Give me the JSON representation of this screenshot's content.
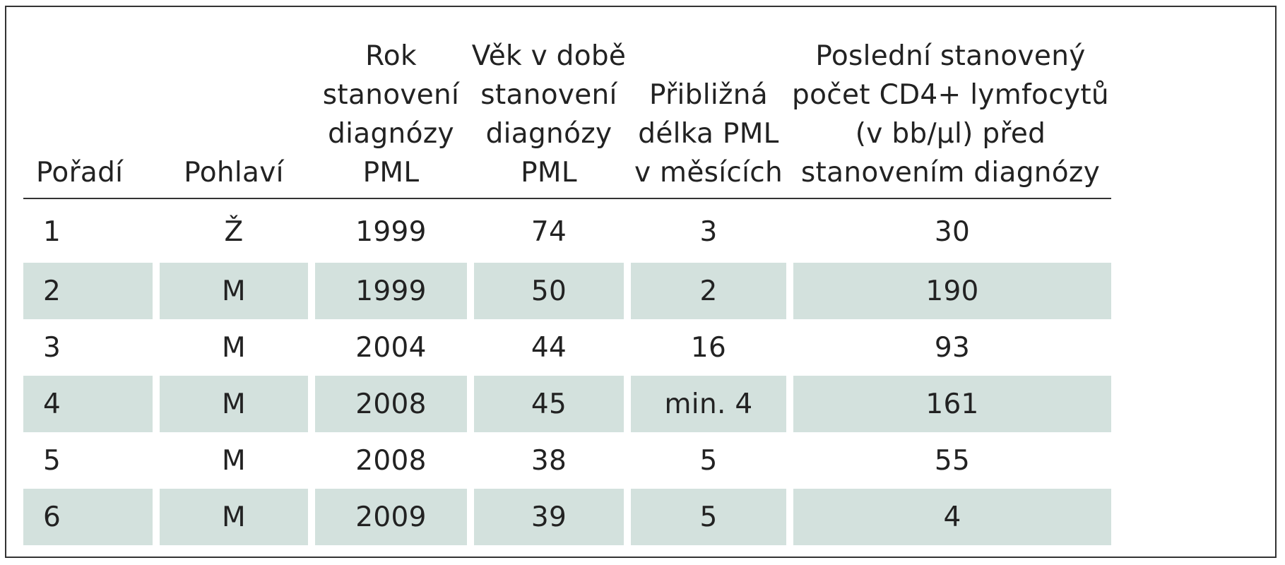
{
  "table": {
    "columns": [
      {
        "lines": [
          "Pořadí"
        ]
      },
      {
        "lines": [
          "Pohlaví"
        ]
      },
      {
        "lines": [
          "Rok",
          "stanovení",
          "diagnózy",
          "PML"
        ]
      },
      {
        "lines": [
          "Věk v době",
          "stanovení",
          "diagnózy",
          "PML"
        ]
      },
      {
        "lines": [
          "Přibližná",
          "délka PML",
          "v měsících"
        ]
      },
      {
        "lines": [
          "Poslední stanovený",
          "počet CD4+ lymfocytů",
          "(v bb/µl) před",
          "stanovením diagnózy"
        ]
      }
    ],
    "rows": [
      [
        "1",
        "Ž",
        "1999",
        "74",
        "3",
        "30"
      ],
      [
        "2",
        "M",
        "1999",
        "50",
        "2",
        "190"
      ],
      [
        "3",
        "M",
        "2004",
        "44",
        "16",
        "93"
      ],
      [
        "4",
        "M",
        "2008",
        "45",
        "min. 4",
        "161"
      ],
      [
        "5",
        "M",
        "2008",
        "38",
        "5",
        "55"
      ],
      [
        "6",
        "M",
        "2009",
        "39",
        "5",
        "4"
      ]
    ],
    "shade_color": "#d3e1dd"
  }
}
